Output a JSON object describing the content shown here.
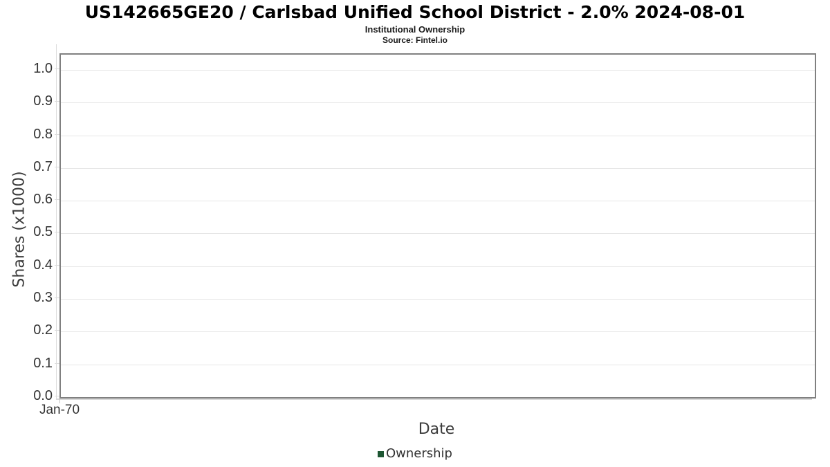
{
  "chart_data": {
    "type": "column",
    "title": "US142665GE20 / Carlsbad Unified School District - 2.0% 2024-08-01",
    "subtitle": "Institutional Ownership",
    "source": "Source: Fintel.io",
    "xlabel": "Date",
    "ylabel": "Shares (x1000)",
    "ylim": [
      0,
      1.0465
    ],
    "grid": "horizontal-only",
    "legend_position": "bottom-center",
    "yticks": [
      {
        "value": 0.0,
        "label": "0.0"
      },
      {
        "value": 0.1,
        "label": "0.1"
      },
      {
        "value": 0.2,
        "label": "0.2"
      },
      {
        "value": 0.3,
        "label": "0.3"
      },
      {
        "value": 0.4,
        "label": "0.4"
      },
      {
        "value": 0.5,
        "label": "0.5"
      },
      {
        "value": 0.6,
        "label": "0.6"
      },
      {
        "value": 0.7,
        "label": "0.7"
      },
      {
        "value": 0.8,
        "label": "0.8"
      },
      {
        "value": 0.9,
        "label": "0.9"
      },
      {
        "value": 1.0,
        "label": "1.0"
      }
    ],
    "xticks": [
      {
        "label": "Jan-70",
        "pos": 0
      }
    ],
    "series": [
      {
        "name": "Ownership",
        "color": "#1d5632",
        "x": [],
        "values": []
      }
    ]
  },
  "colors": {
    "gridline": "#e6e6e6",
    "plot_border": "#808080",
    "axis_line": "#dcdcdc",
    "tick_text": "#333333",
    "axis_title_text": "#3c3c3c",
    "legend_marker": "#1d5632"
  }
}
